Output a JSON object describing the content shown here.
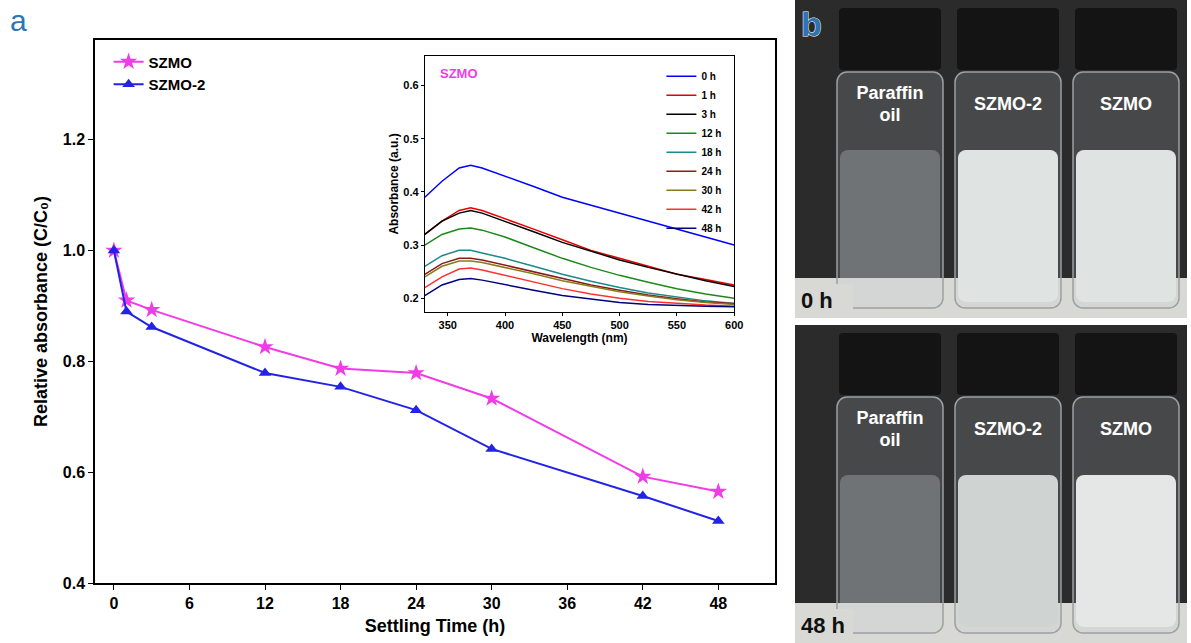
{
  "chart_data": [
    {
      "type": "line",
      "panel_label": "a",
      "x_label": "Settling Time (h)",
      "y_label": "Relative absorbance (C/C₀)",
      "xlim": [
        -1.5,
        52.5
      ],
      "xticks": [
        0,
        6,
        12,
        18,
        24,
        30,
        36,
        42,
        48
      ],
      "ylim": [
        0.4,
        1.38
      ],
      "yticks": [
        0.4,
        0.6,
        0.8,
        {
          "value": 1.0,
          "label": "1.0"
        },
        1.2
      ],
      "grid": false,
      "legend": "top left",
      "x": [
        0,
        1,
        3,
        12,
        18,
        24,
        30,
        42,
        48
      ],
      "series": [
        {
          "name": "SZMO",
          "color": "#f03ce6",
          "marker": "star",
          "line_style": "solid",
          "values": [
            1.0,
            0.91,
            0.893,
            0.826,
            0.787,
            0.779,
            0.733,
            0.592,
            0.565
          ]
        },
        {
          "name": "SZMO-2",
          "color": "#2323e6",
          "marker": "triangle-up",
          "line_style": "solid",
          "values": [
            1.0,
            0.89,
            0.862,
            0.779,
            0.754,
            0.712,
            0.642,
            0.557,
            0.512
          ]
        }
      ]
    },
    {
      "type": "line",
      "annotations": [
        "SZMO"
      ],
      "x_label": "Wavelength (nm)",
      "y_label": "Absorbance (a.u.)",
      "xlim": [
        330,
        600
      ],
      "xticks": [
        350,
        400,
        450,
        500,
        550,
        600
      ],
      "ylim": [
        0.175,
        0.655
      ],
      "yticks": [
        0.2,
        0.3,
        0.4,
        0.5,
        0.6
      ],
      "grid": false,
      "legend": "top right",
      "x": [
        330,
        345,
        360,
        370,
        380,
        400,
        425,
        450,
        475,
        500,
        525,
        550,
        575,
        600
      ],
      "series": [
        {
          "name": "0 h",
          "color": "#0000ff",
          "line_style": "solid",
          "values": [
            0.39,
            0.42,
            0.445,
            0.45,
            0.445,
            0.43,
            0.41,
            0.39,
            0.375,
            0.36,
            0.345,
            0.33,
            0.315,
            0.3
          ]
        },
        {
          "name": "1 h",
          "color": "#e60000",
          "line_style": "solid",
          "values": [
            0.32,
            0.345,
            0.365,
            0.37,
            0.365,
            0.35,
            0.33,
            0.31,
            0.29,
            0.275,
            0.26,
            0.245,
            0.235,
            0.225
          ]
        },
        {
          "name": "3 h",
          "color": "#000000",
          "line_style": "solid",
          "values": [
            0.32,
            0.345,
            0.36,
            0.365,
            0.36,
            0.345,
            0.325,
            0.305,
            0.288,
            0.272,
            0.258,
            0.245,
            0.233,
            0.222
          ]
        },
        {
          "name": "12 h",
          "color": "#1a8a1a",
          "line_style": "solid",
          "values": [
            0.3,
            0.32,
            0.33,
            0.332,
            0.328,
            0.315,
            0.295,
            0.275,
            0.258,
            0.243,
            0.23,
            0.218,
            0.208,
            0.2
          ]
        },
        {
          "name": "18 h",
          "color": "#1a8a8a",
          "line_style": "solid",
          "values": [
            0.26,
            0.28,
            0.29,
            0.29,
            0.285,
            0.275,
            0.26,
            0.245,
            0.232,
            0.22,
            0.21,
            0.202,
            0.195,
            0.19
          ]
        },
        {
          "name": "24 h",
          "color": "#8b1a1a",
          "line_style": "solid",
          "values": [
            0.245,
            0.265,
            0.275,
            0.275,
            0.272,
            0.262,
            0.25,
            0.237,
            0.225,
            0.215,
            0.206,
            0.199,
            0.193,
            0.19
          ]
        },
        {
          "name": "30 h",
          "color": "#8a7a1a",
          "line_style": "solid",
          "values": [
            0.24,
            0.26,
            0.27,
            0.27,
            0.267,
            0.258,
            0.246,
            0.233,
            0.222,
            0.212,
            0.204,
            0.197,
            0.192,
            0.188
          ]
        },
        {
          "name": "42 h",
          "color": "#ff3030",
          "line_style": "solid",
          "values": [
            0.22,
            0.24,
            0.255,
            0.257,
            0.253,
            0.243,
            0.23,
            0.218,
            0.208,
            0.2,
            0.194,
            0.19,
            0.187,
            0.185
          ]
        },
        {
          "name": "48 h",
          "color": "#000080",
          "line_style": "solid",
          "values": [
            0.205,
            0.225,
            0.235,
            0.237,
            0.234,
            0.225,
            0.215,
            0.205,
            0.198,
            0.192,
            0.188,
            0.186,
            0.185,
            0.184
          ]
        }
      ]
    }
  ],
  "photo_panel": {
    "panel_label": "b",
    "vial_labels": [
      "Paraffin oil",
      "SZMO-2",
      "SZMO"
    ],
    "times": [
      "0 h",
      "48 h"
    ]
  }
}
